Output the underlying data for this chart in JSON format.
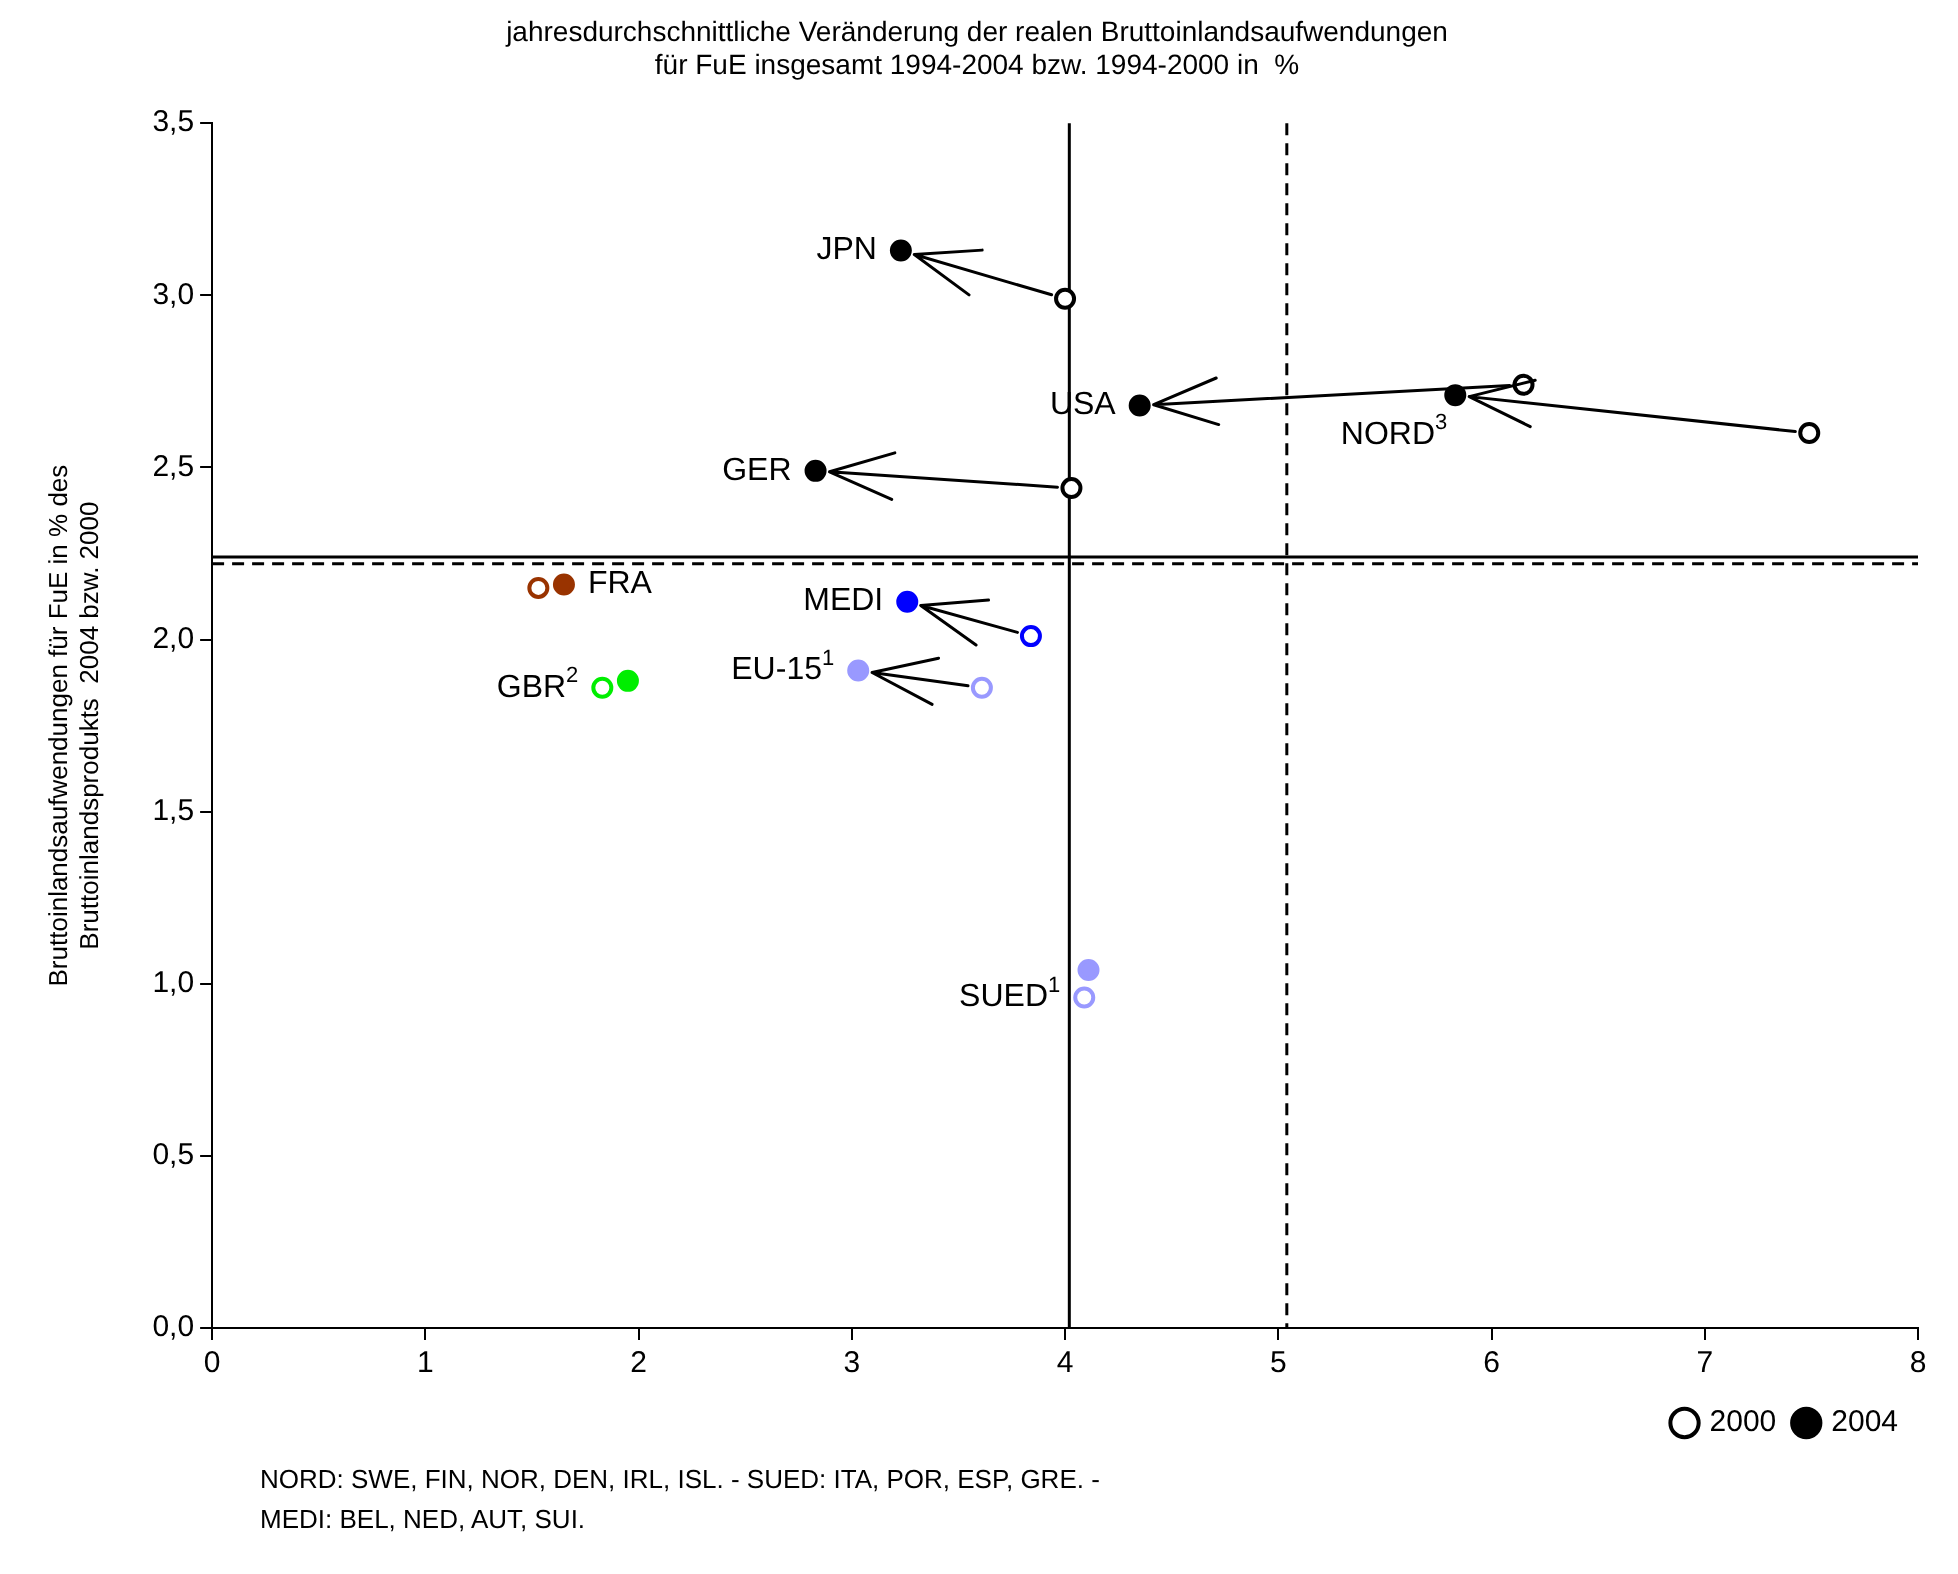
{
  "chart_data": {
    "type": "scatter",
    "title": [
      "jahresdurchschnittliche Veränderung der realen Bruttoinlandsaufwendungen",
      "für FuE insgesamt 1994-2004 bzw. 1994-2000 in  %"
    ],
    "ylabel": [
      "Bruttoinlandsaufwendungen für FuE in % des",
      "Bruttoinlandsprodukts  2004 bzw. 2000"
    ],
    "xlim": [
      0,
      8
    ],
    "xticks": [
      0,
      1,
      2,
      3,
      4,
      5,
      6,
      7,
      8
    ],
    "ylim": [
      0,
      3.5
    ],
    "yticks": [
      {
        "value": 0,
        "label": "0,0"
      },
      {
        "value": 0.5,
        "label": "0,5"
      },
      {
        "value": 1,
        "label": "1,0"
      },
      {
        "value": 1.5,
        "label": "1,5"
      },
      {
        "value": 2,
        "label": "2,0"
      },
      {
        "value": 2.5,
        "label": "2,5"
      },
      {
        "value": 3,
        "label": "3,0"
      },
      {
        "value": 3.5,
        "label": "3,5"
      }
    ],
    "grid": false,
    "legend": "bottom right",
    "marker": "circle",
    "series": [
      {
        "name": "2000",
        "color": "#000000",
        "x": [
          4.0,
          6.15,
          7.49,
          4.03,
          1.53,
          3.84,
          1.83,
          3.61,
          4.09
        ],
        "values": [
          2.99,
          2.74,
          2.6,
          2.44,
          2.15,
          2.01,
          1.86,
          1.86,
          0.96
        ],
        "colors": [
          "#000000",
          "#000000",
          "#000000",
          "#000000",
          "#993300",
          "#0000ff",
          "#00ee00",
          "#9999ff",
          "#9999ff"
        ]
      },
      {
        "name": "2004",
        "color": "#000000",
        "x": [
          3.23,
          4.35,
          5.83,
          2.83,
          1.65,
          3.26,
          1.95,
          3.03,
          4.11
        ],
        "values": [
          3.13,
          2.68,
          2.71,
          2.49,
          2.16,
          2.11,
          1.88,
          1.91,
          1.04
        ],
        "colors": [
          "#000000",
          "#000000",
          "#000000",
          "#000000",
          "#993300",
          "#0000ff",
          "#00ee00",
          "#9999ff",
          "#9999ff"
        ]
      }
    ],
    "ref_lines": [
      {
        "axis": "y",
        "value": 2.24,
        "line_style": "solid",
        "color": "#000000"
      },
      {
        "axis": "y",
        "value": 2.22,
        "line_style": "dashed",
        "color": "#000000"
      },
      {
        "axis": "x",
        "value": 4.02,
        "line_style": "solid",
        "color": "#000000"
      },
      {
        "axis": "x",
        "value": 5.04,
        "line_style": "dashed",
        "color": "#000000"
      }
    ],
    "annotations": [
      {
        "text": "JPN",
        "x": 3.23,
        "y": 3.13
      },
      {
        "text": "USA",
        "x": 4.35,
        "y": 2.68
      },
      {
        "text": "NORD$^{3}$",
        "x": 5.83,
        "y": 2.71
      },
      {
        "text": "GER",
        "x": 2.83,
        "y": 2.49
      },
      {
        "text": "FRA",
        "x": 1.65,
        "y": 2.16
      },
      {
        "text": "MEDI",
        "x": 3.26,
        "y": 2.11
      },
      {
        "text": "GBR$^{2}$",
        "x": 1.83,
        "y": 1.86
      },
      {
        "text": "EU-15$^{1}$",
        "x": 3.03,
        "y": 1.91
      },
      {
        "text": "SUED$^{1}$",
        "x": 4.09,
        "y": 0.96
      },
      "NORD: SWE, FIN, NOR, DEN, IRL, ISL. - SUED: ITA, POR, ESP, GRE. -",
      "MEDI: BEL, NED, AUT, SUI."
    ]
  }
}
